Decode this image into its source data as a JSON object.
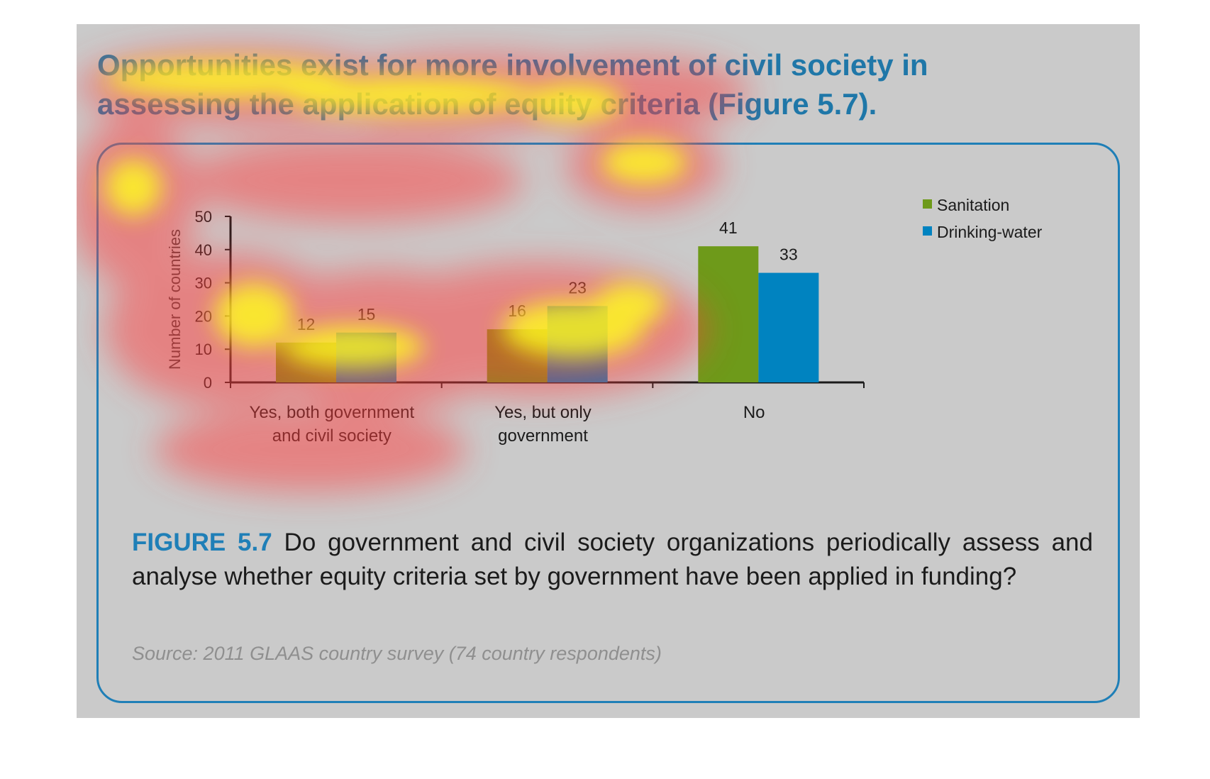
{
  "heading": "Opportunities exist for more involvement of civil society in assessing the application of equity criteria (Figure 5.7).",
  "figure": {
    "label": "FIGURE 5.7",
    "caption": "Do government and civil society organizations periodically assess and analyse whether equity criteria set by government have been applied in funding?",
    "source": "Source: 2011 GLAAS country survey (74 country respondents)"
  },
  "colors": {
    "panel_background": "#cacaca",
    "heading": "#1f77a8",
    "accent": "#1f7fb7",
    "heatmap_hot": "#ffff1e",
    "heatmap_mid": "#ff3c3c"
  },
  "chart_data": {
    "type": "bar",
    "categories": [
      [
        "Yes, both government",
        "and civil society"
      ],
      [
        "Yes, but only",
        "government"
      ],
      [
        "No"
      ]
    ],
    "series": [
      {
        "name": "Sanitation",
        "color": "#6e9a1a",
        "values": [
          12,
          16,
          41
        ]
      },
      {
        "name": "Drinking-water",
        "color": "#0083c0",
        "values": [
          15,
          23,
          33
        ]
      }
    ],
    "ylabel": "Number of countries",
    "ylim": [
      0,
      50
    ],
    "yticks": [
      0,
      10,
      20,
      30,
      40,
      50
    ],
    "data_labels": true,
    "grid": false,
    "legend_position": "top-right"
  }
}
